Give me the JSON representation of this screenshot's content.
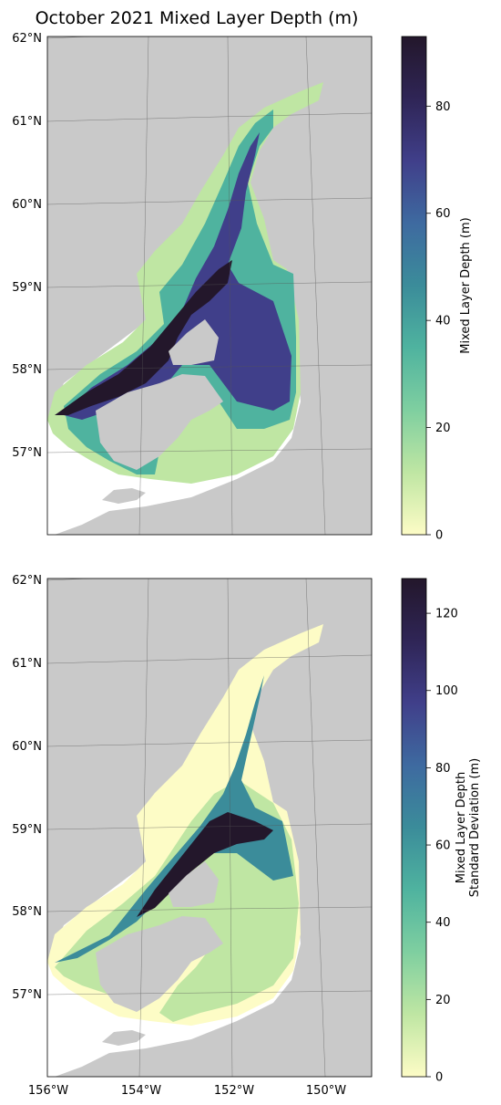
{
  "figure": {
    "title": "October 2021 Mixed Layer Depth (m)"
  },
  "colors": {
    "land": "#c9c9c9",
    "graticule": "#555555",
    "cmap": [
      "#fdfcc6",
      "#bfe6a3",
      "#7fcfa0",
      "#4fb39f",
      "#3b8c9a",
      "#3e6aa0",
      "#403f8a",
      "#2f2556",
      "#23172b"
    ]
  },
  "latitude_labels": [
    "62°N",
    "61°N",
    "60°N",
    "59°N",
    "58°N",
    "57°N"
  ],
  "longitude_labels": [
    "156°W",
    "154°W",
    "152°W",
    "150°W"
  ],
  "panels": [
    {
      "id": "mean",
      "colorbar": {
        "label_lines": [
          "Mixed Layer Depth (m)"
        ],
        "range": [
          0,
          93
        ],
        "ticks": [
          0,
          20,
          40,
          60,
          80
        ]
      }
    },
    {
      "id": "std",
      "colorbar": {
        "label_lines": [
          "Mixed Layer Depth",
          "Standard Deviation (m)"
        ],
        "range": [
          0,
          129
        ],
        "ticks": [
          0,
          20,
          40,
          60,
          80,
          100,
          120
        ]
      }
    }
  ]
}
